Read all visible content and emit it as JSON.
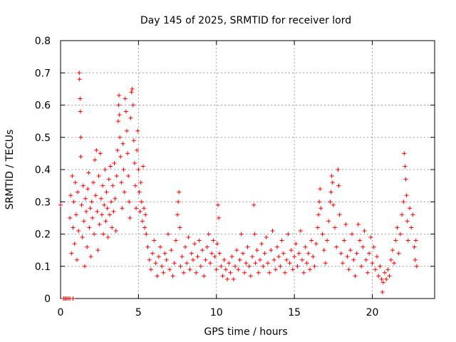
{
  "chart_data": {
    "type": "scatter",
    "title": "Day 145 of 2025, SRMTID for receiver lord",
    "xlabel": "GPS time / hours",
    "ylabel": "SRMTID / TECUs",
    "xlim": [
      0,
      24
    ],
    "ylim": [
      0,
      0.8
    ],
    "x_ticks": [
      0,
      5,
      10,
      15,
      20
    ],
    "y_ticks": [
      0,
      0.1,
      0.2,
      0.3,
      0.4,
      0.5,
      0.6,
      0.7,
      0.8
    ],
    "x_tick_labels": [
      "0",
      "5",
      "10",
      "15",
      "20"
    ],
    "y_tick_labels": [
      "0",
      "0.1",
      "0.2",
      "0.3",
      "0.4",
      "0.5",
      "0.6",
      "0.7",
      "0.8"
    ],
    "grid": true,
    "marker": "+",
    "color": "#ff0000",
    "series": [
      {
        "name": "SRMTID",
        "points": [
          [
            0.0,
            0.29
          ],
          [
            0.2,
            0.0
          ],
          [
            0.3,
            0.0
          ],
          [
            0.4,
            0.0
          ],
          [
            0.5,
            0.0
          ],
          [
            0.6,
            0.0
          ],
          [
            0.8,
            0.0
          ],
          [
            0.6,
            0.25
          ],
          [
            0.65,
            0.32
          ],
          [
            0.7,
            0.14
          ],
          [
            0.75,
            0.38
          ],
          [
            0.8,
            0.22
          ],
          [
            0.85,
            0.3
          ],
          [
            0.9,
            0.17
          ],
          [
            0.95,
            0.36
          ],
          [
            1.0,
            0.26
          ],
          [
            1.05,
            0.12
          ],
          [
            1.1,
            0.33
          ],
          [
            1.15,
            0.21
          ],
          [
            1.2,
            0.7
          ],
          [
            1.22,
            0.68
          ],
          [
            1.25,
            0.62
          ],
          [
            1.27,
            0.58
          ],
          [
            1.3,
            0.5
          ],
          [
            1.3,
            0.44
          ],
          [
            1.35,
            0.29
          ],
          [
            1.4,
            0.19
          ],
          [
            1.45,
            0.35
          ],
          [
            1.5,
            0.24
          ],
          [
            1.55,
            0.1
          ],
          [
            1.6,
            0.31
          ],
          [
            1.65,
            0.27
          ],
          [
            1.7,
            0.16
          ],
          [
            1.75,
            0.34
          ],
          [
            1.8,
            0.39
          ],
          [
            1.85,
            0.22
          ],
          [
            1.9,
            0.28
          ],
          [
            1.95,
            0.13
          ],
          [
            2.0,
            0.3
          ],
          [
            2.05,
            0.25
          ],
          [
            2.1,
            0.36
          ],
          [
            2.15,
            0.2
          ],
          [
            2.2,
            0.43
          ],
          [
            2.25,
            0.32
          ],
          [
            2.3,
            0.46
          ],
          [
            2.35,
            0.27
          ],
          [
            2.4,
            0.15
          ],
          [
            2.45,
            0.38
          ],
          [
            2.5,
            0.23
          ],
          [
            2.55,
            0.45
          ],
          [
            2.6,
            0.31
          ],
          [
            2.65,
            0.26
          ],
          [
            2.7,
            0.35
          ],
          [
            2.75,
            0.2
          ],
          [
            2.8,
            0.29
          ],
          [
            2.85,
            0.4
          ],
          [
            2.9,
            0.24
          ],
          [
            2.95,
            0.33
          ],
          [
            3.0,
            0.28
          ],
          [
            3.05,
            0.19
          ],
          [
            3.1,
            0.37
          ],
          [
            3.15,
            0.26
          ],
          [
            3.2,
            0.41
          ],
          [
            3.25,
            0.3
          ],
          [
            3.3,
            0.22
          ],
          [
            3.35,
            0.35
          ],
          [
            3.4,
            0.27
          ],
          [
            3.45,
            0.42
          ],
          [
            3.5,
            0.31
          ],
          [
            3.55,
            0.21
          ],
          [
            3.6,
            0.38
          ],
          [
            3.65,
            0.46
          ],
          [
            3.7,
            0.55
          ],
          [
            3.72,
            0.6
          ],
          [
            3.75,
            0.63
          ],
          [
            3.78,
            0.57
          ],
          [
            3.8,
            0.5
          ],
          [
            3.85,
            0.44
          ],
          [
            3.9,
            0.36
          ],
          [
            3.95,
            0.28
          ],
          [
            4.0,
            0.48
          ],
          [
            4.05,
            0.4
          ],
          [
            4.1,
            0.33
          ],
          [
            4.15,
            0.62
          ],
          [
            4.2,
            0.58
          ],
          [
            4.25,
            0.52
          ],
          [
            4.3,
            0.45
          ],
          [
            4.35,
            0.38
          ],
          [
            4.4,
            0.3
          ],
          [
            4.45,
            0.25
          ],
          [
            4.5,
            0.56
          ],
          [
            4.55,
            0.64
          ],
          [
            4.6,
            0.65
          ],
          [
            4.65,
            0.6
          ],
          [
            4.7,
            0.49
          ],
          [
            4.75,
            0.42
          ],
          [
            4.8,
            0.35
          ],
          [
            4.85,
            0.28
          ],
          [
            4.9,
            0.46
          ],
          [
            4.95,
            0.52
          ],
          [
            5.0,
            0.4
          ],
          [
            5.05,
            0.33
          ],
          [
            5.1,
            0.27
          ],
          [
            5.15,
            0.36
          ],
          [
            5.2,
            0.3
          ],
          [
            5.25,
            0.24
          ],
          [
            5.3,
            0.41
          ],
          [
            5.35,
            0.28
          ],
          [
            5.4,
            0.22
          ],
          [
            5.45,
            0.26
          ],
          [
            5.5,
            0.2
          ],
          [
            5.6,
            0.16
          ],
          [
            5.7,
            0.12
          ],
          [
            5.8,
            0.09
          ],
          [
            5.9,
            0.14
          ],
          [
            6.0,
            0.18
          ],
          [
            6.1,
            0.11
          ],
          [
            6.2,
            0.07
          ],
          [
            6.3,
            0.13
          ],
          [
            6.4,
            0.16
          ],
          [
            6.5,
            0.1
          ],
          [
            6.6,
            0.08
          ],
          [
            6.7,
            0.14
          ],
          [
            6.8,
            0.12
          ],
          [
            6.9,
            0.2
          ],
          [
            7.0,
            0.09
          ],
          [
            7.1,
            0.15
          ],
          [
            7.2,
            0.07
          ],
          [
            7.3,
            0.11
          ],
          [
            7.4,
            0.18
          ],
          [
            7.5,
            0.26
          ],
          [
            7.55,
            0.3
          ],
          [
            7.6,
            0.33
          ],
          [
            7.65,
            0.22
          ],
          [
            7.7,
            0.1
          ],
          [
            7.8,
            0.13
          ],
          [
            7.9,
            0.08
          ],
          [
            8.0,
            0.16
          ],
          [
            8.1,
            0.11
          ],
          [
            8.2,
            0.19
          ],
          [
            8.3,
            0.09
          ],
          [
            8.4,
            0.14
          ],
          [
            8.5,
            0.12
          ],
          [
            8.6,
            0.17
          ],
          [
            8.7,
            0.08
          ],
          [
            8.8,
            0.13
          ],
          [
            8.9,
            0.18
          ],
          [
            9.0,
            0.1
          ],
          [
            9.1,
            0.15
          ],
          [
            9.2,
            0.07
          ],
          [
            9.3,
            0.12
          ],
          [
            9.4,
            0.16
          ],
          [
            9.5,
            0.2
          ],
          [
            9.6,
            0.11
          ],
          [
            9.7,
            0.14
          ],
          [
            9.8,
            0.18
          ],
          [
            9.9,
            0.13
          ],
          [
            10.0,
            0.09
          ],
          [
            10.05,
            0.17
          ],
          [
            10.1,
            0.29
          ],
          [
            10.15,
            0.25
          ],
          [
            10.2,
            0.14
          ],
          [
            10.3,
            0.1
          ],
          [
            10.4,
            0.07
          ],
          [
            10.5,
            0.12
          ],
          [
            10.6,
            0.09
          ],
          [
            10.7,
            0.06
          ],
          [
            10.8,
            0.11
          ],
          [
            10.9,
            0.08
          ],
          [
            11.0,
            0.13
          ],
          [
            11.1,
            0.06
          ],
          [
            11.2,
            0.1
          ],
          [
            11.3,
            0.15
          ],
          [
            11.4,
            0.09
          ],
          [
            11.5,
            0.12
          ],
          [
            11.6,
            0.2
          ],
          [
            11.7,
            0.14
          ],
          [
            11.8,
            0.08
          ],
          [
            11.9,
            0.11
          ],
          [
            12.0,
            0.16
          ],
          [
            12.1,
            0.1
          ],
          [
            12.2,
            0.07
          ],
          [
            12.3,
            0.13
          ],
          [
            12.4,
            0.29
          ],
          [
            12.45,
            0.2
          ],
          [
            12.5,
            0.11
          ],
          [
            12.6,
            0.15
          ],
          [
            12.7,
            0.08
          ],
          [
            12.8,
            0.12
          ],
          [
            12.9,
            0.17
          ],
          [
            13.0,
            0.1
          ],
          [
            13.1,
            0.14
          ],
          [
            13.2,
            0.19
          ],
          [
            13.3,
            0.11
          ],
          [
            13.4,
            0.08
          ],
          [
            13.5,
            0.15
          ],
          [
            13.6,
            0.21
          ],
          [
            13.7,
            0.12
          ],
          [
            13.8,
            0.09
          ],
          [
            13.9,
            0.16
          ],
          [
            14.0,
            0.13
          ],
          [
            14.1,
            0.1
          ],
          [
            14.2,
            0.18
          ],
          [
            14.3,
            0.14
          ],
          [
            14.4,
            0.08
          ],
          [
            14.5,
            0.12
          ],
          [
            14.6,
            0.2
          ],
          [
            14.7,
            0.11
          ],
          [
            14.8,
            0.15
          ],
          [
            14.9,
            0.09
          ],
          [
            15.0,
            0.13
          ],
          [
            15.1,
            0.17
          ],
          [
            15.2,
            0.1
          ],
          [
            15.3,
            0.14
          ],
          [
            15.4,
            0.21
          ],
          [
            15.5,
            0.12
          ],
          [
            15.6,
            0.08
          ],
          [
            15.7,
            0.16
          ],
          [
            15.8,
            0.11
          ],
          [
            15.9,
            0.14
          ],
          [
            16.0,
            0.09
          ],
          [
            16.1,
            0.18
          ],
          [
            16.2,
            0.13
          ],
          [
            16.3,
            0.1
          ],
          [
            16.4,
            0.17
          ],
          [
            16.5,
            0.22
          ],
          [
            16.55,
            0.26
          ],
          [
            16.6,
            0.3
          ],
          [
            16.65,
            0.34
          ],
          [
            16.7,
            0.28
          ],
          [
            16.8,
            0.2
          ],
          [
            16.9,
            0.15
          ],
          [
            17.0,
            0.11
          ],
          [
            17.1,
            0.18
          ],
          [
            17.2,
            0.24
          ],
          [
            17.3,
            0.3
          ],
          [
            17.35,
            0.33
          ],
          [
            17.4,
            0.38
          ],
          [
            17.45,
            0.36
          ],
          [
            17.5,
            0.29
          ],
          [
            17.6,
            0.22
          ],
          [
            17.7,
            0.16
          ],
          [
            17.8,
            0.4
          ],
          [
            17.85,
            0.35
          ],
          [
            17.9,
            0.26
          ],
          [
            18.0,
            0.14
          ],
          [
            18.1,
            0.11
          ],
          [
            18.2,
            0.18
          ],
          [
            18.3,
            0.23
          ],
          [
            18.4,
            0.13
          ],
          [
            18.5,
            0.09
          ],
          [
            18.6,
            0.15
          ],
          [
            18.7,
            0.2
          ],
          [
            18.8,
            0.12
          ],
          [
            18.9,
            0.07
          ],
          [
            19.0,
            0.14
          ],
          [
            19.1,
            0.23
          ],
          [
            19.2,
            0.18
          ],
          [
            19.3,
            0.1
          ],
          [
            19.4,
            0.16
          ],
          [
            19.5,
            0.21
          ],
          [
            19.6,
            0.12
          ],
          [
            19.7,
            0.08
          ],
          [
            19.8,
            0.14
          ],
          [
            19.9,
            0.19
          ],
          [
            20.0,
            0.11
          ],
          [
            20.1,
            0.16
          ],
          [
            20.2,
            0.09
          ],
          [
            20.3,
            0.13
          ],
          [
            20.4,
            0.07
          ],
          [
            20.5,
            0.1
          ],
          [
            20.6,
            0.06
          ],
          [
            20.65,
            0.02
          ],
          [
            20.7,
            0.05
          ],
          [
            20.8,
            0.08
          ],
          [
            20.9,
            0.06
          ],
          [
            21.0,
            0.09
          ],
          [
            21.1,
            0.07
          ],
          [
            21.2,
            0.12
          ],
          [
            21.3,
            0.15
          ],
          [
            21.4,
            0.11
          ],
          [
            21.5,
            0.18
          ],
          [
            21.6,
            0.22
          ],
          [
            21.7,
            0.14
          ],
          [
            21.8,
            0.2
          ],
          [
            21.9,
            0.26
          ],
          [
            22.0,
            0.3
          ],
          [
            22.05,
            0.45
          ],
          [
            22.1,
            0.41
          ],
          [
            22.15,
            0.37
          ],
          [
            22.2,
            0.32
          ],
          [
            22.25,
            0.24
          ],
          [
            22.3,
            0.18
          ],
          [
            22.4,
            0.28
          ],
          [
            22.5,
            0.22
          ],
          [
            22.6,
            0.26
          ],
          [
            22.7,
            0.16
          ],
          [
            22.75,
            0.12
          ],
          [
            22.8,
            0.18
          ],
          [
            22.85,
            0.1
          ]
        ]
      }
    ]
  }
}
